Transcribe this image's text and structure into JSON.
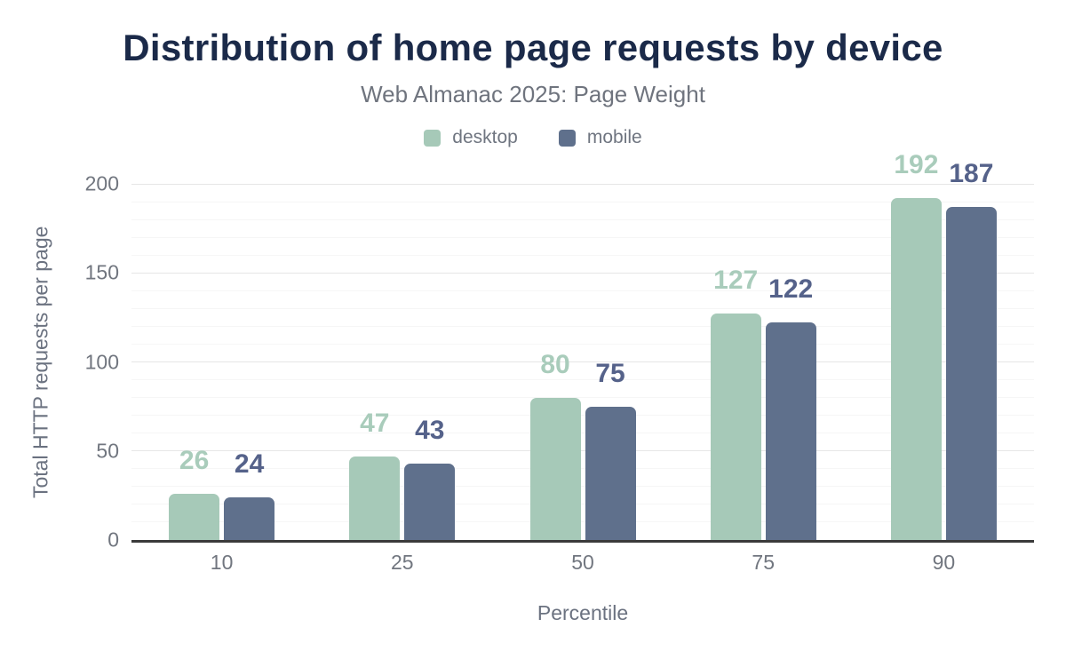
{
  "chart_data": {
    "type": "bar",
    "title": "Distribution of home page requests by device",
    "subtitle": "Web Almanac 2025: Page Weight",
    "xlabel": "Percentile",
    "ylabel": "Total HTTP requests per page",
    "categories": [
      "10",
      "25",
      "50",
      "75",
      "90"
    ],
    "series": [
      {
        "name": "desktop",
        "values": [
          26,
          47,
          80,
          127,
          192
        ],
        "color": "#a6c9b8",
        "label_color": "#a9ccbb"
      },
      {
        "name": "mobile",
        "values": [
          24,
          43,
          75,
          122,
          187
        ],
        "color": "#5f708c",
        "label_color": "#55628a"
      }
    ],
    "ylim": [
      0,
      200
    ],
    "yticks": [
      0,
      50,
      100,
      150,
      200
    ],
    "minor_tick_step": 10,
    "grid": "horizontal-major-and-minor",
    "legend_position": "top",
    "bar_corner_radius": "rounded-top",
    "data_labels": "above-bars"
  },
  "colors": {
    "background": "#ffffff",
    "title_text": "#1b2a49",
    "subtitle_text": "#6f747e",
    "legend_text": "#6f7580",
    "tick_text": "#71767f",
    "axis_title_text": "#6b7280",
    "axis_line": "#3a3a3a",
    "grid_major": "#e6e6e6",
    "grid_minor": "#f6f6f6"
  }
}
